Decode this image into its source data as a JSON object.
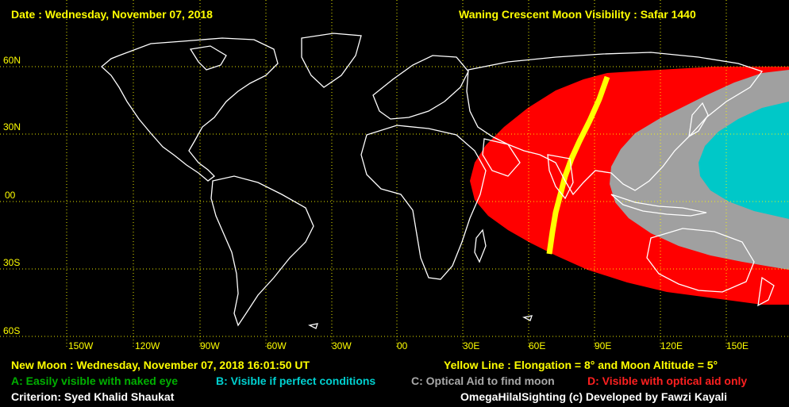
{
  "header": {
    "date_line": "Date : Wednesday, November 07, 2018",
    "title": "Waning Crescent Moon Visibility : Safar 1440"
  },
  "axis": {
    "lat_labels": [
      "60N",
      "30N",
      "00",
      "30S",
      "60S"
    ],
    "lon_labels": [
      "150W",
      "120W",
      "90W",
      "60W",
      "30W",
      "00",
      "30E",
      "60E",
      "90E",
      "120E",
      "150E"
    ]
  },
  "footer": {
    "new_moon": "New Moon : Wednesday, November 07, 2018  16:01:50  UT",
    "yellow_line": "Yellow Line : Elongation = 8° and Moon Altitude = 5°",
    "legend_a": "A: Easily visible with naked eye",
    "legend_b": "B: Visible if perfect conditions",
    "legend_c": "C: Optical Aid to find moon",
    "legend_d": "D: Visible with optical aid only",
    "criterion": "Criterion: Syed Khalid Shaukat",
    "credit": "OmegaHilalSighting  (c)  Developed by Fawzi Kayali"
  },
  "colors": {
    "background": "#000000",
    "text_yellow": "#ffff00",
    "zone_a": "#008000",
    "zone_b": "#00c8c8",
    "zone_c": "#a0a0a0",
    "zone_d": "#ff0000",
    "yellow_line": "#ffff00",
    "coastline": "#ffffff",
    "grid": "#ffff00"
  },
  "icons": [
    "world-map",
    "visibility-zones",
    "coastlines"
  ]
}
